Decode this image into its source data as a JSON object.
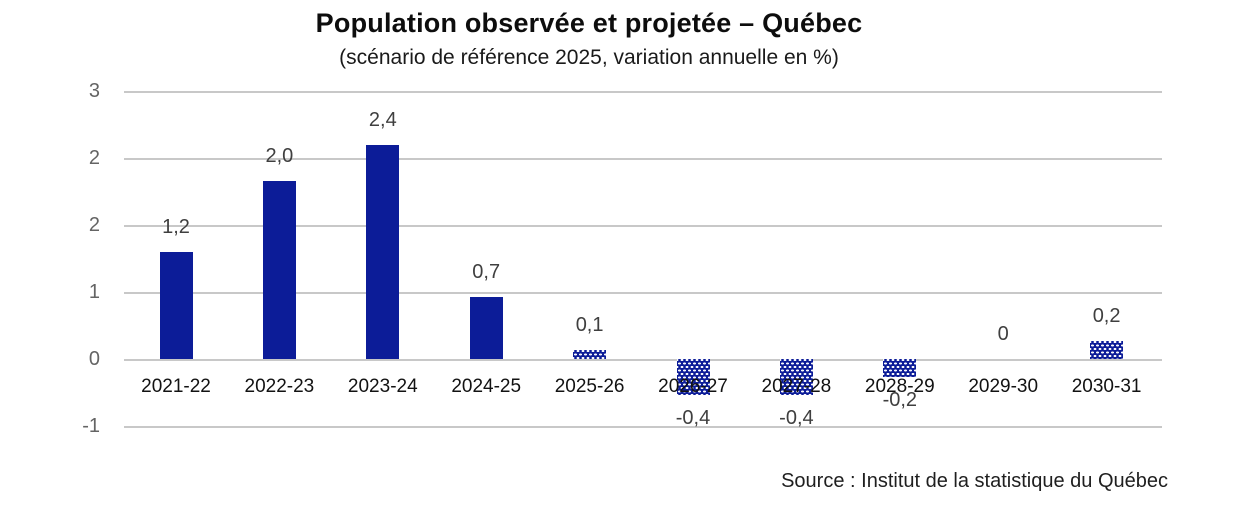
{
  "header": {
    "title": "Population observée et projetée – Québec",
    "subtitle": "(scénario de référence 2025, variation annuelle en %)"
  },
  "source_note": "Source : Institut de la statistique du Québec",
  "chart_data": {
    "type": "bar",
    "title": "Population observée et projetée – Québec",
    "subtitle": "(scénario de référence 2025, variation annuelle en %)",
    "xlabel": "",
    "ylabel": "",
    "categories": [
      "2021-22",
      "2022-23",
      "2023-24",
      "2024-25",
      "2025-26",
      "2026-27",
      "2027-28",
      "2028-29",
      "2029-30",
      "2030-31"
    ],
    "values": [
      1.2,
      2.0,
      2.4,
      0.7,
      0.1,
      -0.4,
      -0.4,
      -0.2,
      0,
      0.2
    ],
    "value_labels": [
      "1,2",
      "2,0",
      "2,4",
      "0,7",
      "0,1",
      "-0,4",
      "-0,4",
      "-0,2",
      "0",
      "0,2"
    ],
    "bar_styles": [
      "solid",
      "solid",
      "solid",
      "solid",
      "dotted",
      "dotted",
      "dotted",
      "dotted",
      "dotted",
      "dotted"
    ],
    "style_meaning": {
      "solid": "observée",
      "dotted": "projetée"
    },
    "y_axis": {
      "tick_labels": [
        "3",
        "2",
        "2",
        "1",
        "0",
        "-1"
      ],
      "ylim": [
        -0.75,
        3
      ]
    },
    "grid": true,
    "legend": "none",
    "colors": {
      "bar_blue": "#0c1c98",
      "gridline": "#c8c8c8",
      "data_label": "#3f3f3f",
      "axis_tick_label": "#646464",
      "category_label": "#121212"
    }
  }
}
